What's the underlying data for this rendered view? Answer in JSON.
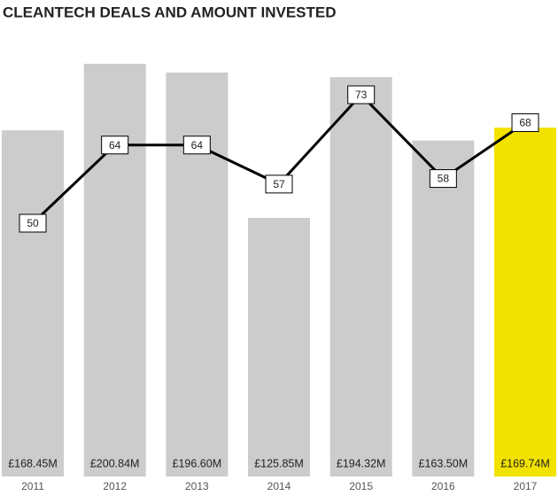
{
  "chart_data": {
    "type": "bar",
    "title": "CLEANTECH DEALS AND AMOUNT INVESTED",
    "categories": [
      "2011",
      "2012",
      "2013",
      "2014",
      "2015",
      "2016",
      "2017"
    ],
    "series": [
      {
        "type": "bar",
        "colors": [
          "#cccccc",
          "#cccccc",
          "#cccccc",
          "#cccccc",
          "#cccccc",
          "#cccccc",
          "#f2e200"
        ],
        "values": [
          168.45,
          200.84,
          196.6,
          125.85,
          194.32,
          163.5,
          169.74
        ],
        "value_labels": [
          "£168.45M",
          "£200.84M",
          "£196.60M",
          "£125.85M",
          "£194.32M",
          "£163.50M",
          "£169.74M"
        ]
      },
      {
        "type": "line",
        "axis": "y2",
        "color": "#000000",
        "values": [
          50,
          64,
          64,
          57,
          73,
          58,
          68
        ]
      }
    ]
  }
}
